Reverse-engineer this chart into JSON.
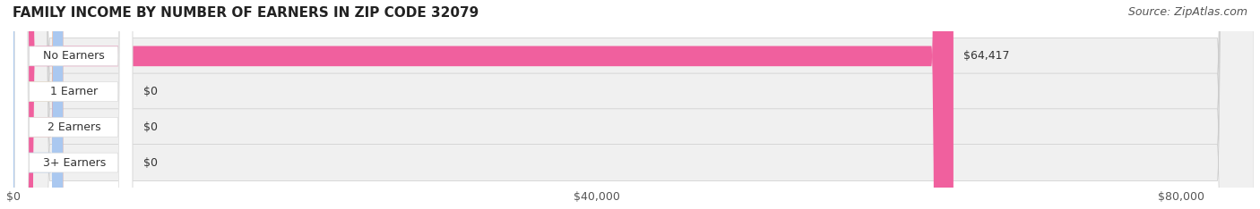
{
  "title": "FAMILY INCOME BY NUMBER OF EARNERS IN ZIP CODE 32079",
  "source": "Source: ZipAtlas.com",
  "categories": [
    "No Earners",
    "1 Earner",
    "2 Earners",
    "3+ Earners"
  ],
  "values": [
    64417,
    0,
    0,
    0
  ],
  "bar_colors": [
    "#f0609e",
    "#f5c98a",
    "#f0a0a0",
    "#aac8f0"
  ],
  "bar_bg_color": "#eeeeee",
  "value_labels": [
    "$64,417",
    "$0",
    "$0",
    "$0"
  ],
  "xlim": [
    0,
    85000
  ],
  "xticks": [
    0,
    40000,
    80000
  ],
  "xtick_labels": [
    "$0",
    "$40,000",
    "$80,000"
  ],
  "title_fontsize": 11,
  "source_fontsize": 9,
  "label_fontsize": 9,
  "tick_fontsize": 9,
  "background_color": "#ffffff",
  "bar_bg_alpha": 0.5,
  "row_bg_colors": [
    "#f8f8f8",
    "#f8f8f8",
    "#f8f8f8",
    "#f8f8f8"
  ]
}
